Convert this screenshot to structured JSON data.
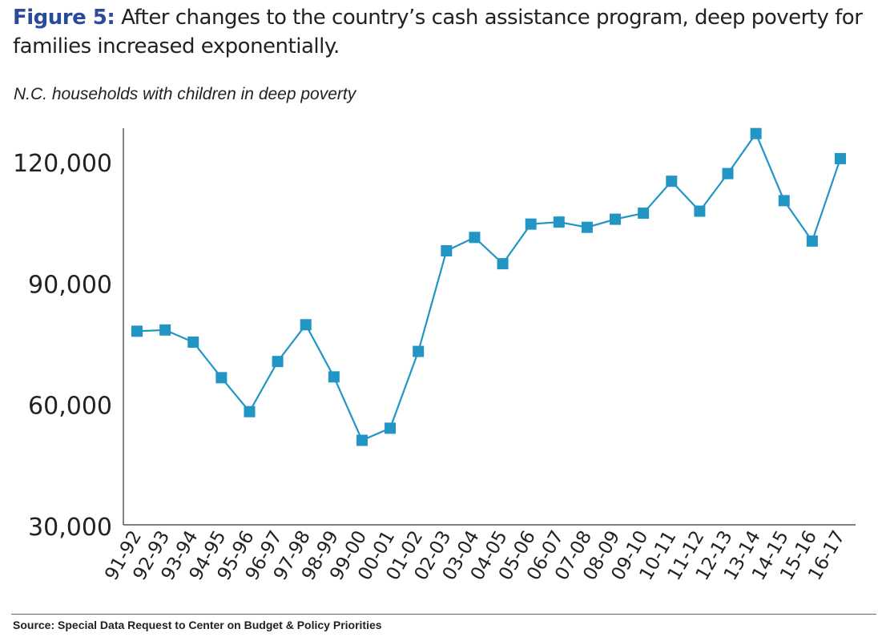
{
  "chart_data": {
    "type": "line",
    "title_prefix": "Figure 5:",
    "title": "After changes to the country’s cash assistance program, deep poverty for families increased exponentially.",
    "subtitle": "N.C. households with children in deep poverty",
    "source": "Source: Special Data Request to Center on Budget & Policy Priorities",
    "xlabel": "",
    "ylabel": "",
    "ylim": [
      30000,
      130000
    ],
    "yticks": [
      30000,
      60000,
      90000,
      120000
    ],
    "ytick_labels": [
      "30,000",
      "60,000",
      "90,000",
      "120,000"
    ],
    "grid": false,
    "color": "#2196c4",
    "categories": [
      "91-92",
      "92-93",
      "93-94",
      "94-95",
      "95-96",
      "96-97",
      "97-98",
      "98-99",
      "99-00",
      "00-01",
      "01-02",
      "02-03",
      "03-04",
      "04-05",
      "05-06",
      "06-07",
      "07-08",
      "08-09",
      "09-10",
      "10-11",
      "11-12",
      "12-13",
      "13-14",
      "14-15",
      "15-16",
      "16-17"
    ],
    "values": [
      78300,
      78600,
      75600,
      66800,
      58400,
      70800,
      79900,
      67000,
      51300,
      54300,
      73300,
      98200,
      101500,
      95000,
      104800,
      105300,
      104000,
      106000,
      107500,
      115400,
      108000,
      117300,
      127200,
      110600,
      100600,
      121000
    ]
  }
}
